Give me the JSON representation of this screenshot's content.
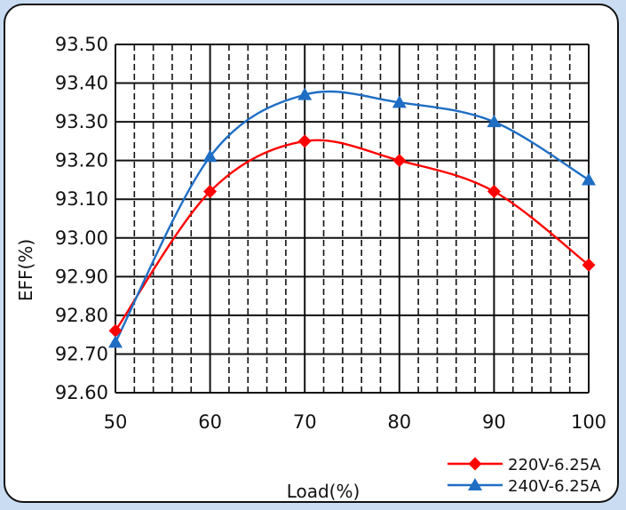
{
  "chart_data": {
    "type": "line",
    "title": "",
    "xlabel": "Load(%)",
    "ylabel": "EFF(%)",
    "x": [
      50,
      60,
      70,
      80,
      90,
      100
    ],
    "x_tick_labels": [
      "50",
      "60",
      "70",
      "80",
      "90",
      "100"
    ],
    "xlim": [
      50,
      100
    ],
    "ylim": [
      92.6,
      93.5
    ],
    "y_tick_labels": [
      "92.60",
      "92.70",
      "92.80",
      "92.90",
      "93.00",
      "93.10",
      "93.20",
      "93.30",
      "93.40",
      "93.50"
    ],
    "grid": true,
    "legend_position": "bottom-right",
    "series": [
      {
        "name": "220V-6.25A",
        "color": "#ff0000",
        "marker": "diamond",
        "values": [
          92.76,
          93.12,
          93.25,
          93.2,
          93.12,
          92.93
        ]
      },
      {
        "name": "240V-6.25A",
        "color": "#1f6ec4",
        "marker": "triangle",
        "values": [
          92.73,
          93.21,
          93.37,
          93.35,
          93.3,
          93.15
        ]
      }
    ]
  }
}
